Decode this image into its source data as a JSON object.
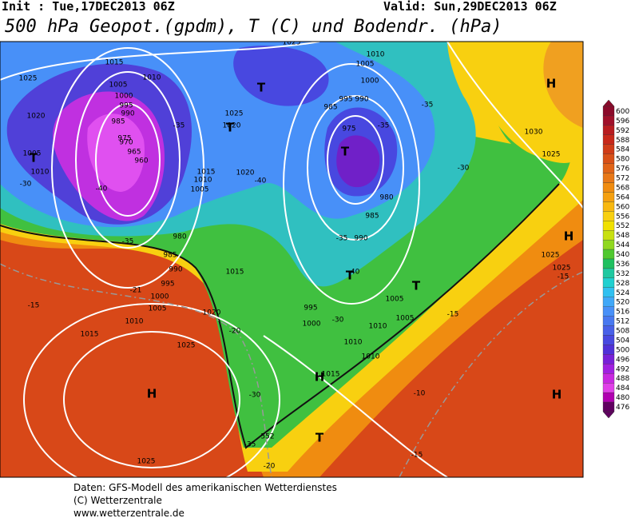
{
  "header": {
    "init": "Init : Tue,17DEC2013 06Z",
    "valid": "Valid: Sun,29DEC2013 06Z",
    "title": "500 hPa Geopot.(gpdm), T (C) und Bodendr. (hPa)"
  },
  "colorbar": {
    "labels": [
      600,
      596,
      592,
      588,
      584,
      580,
      576,
      572,
      568,
      564,
      560,
      556,
      552,
      548,
      544,
      540,
      536,
      532,
      528,
      524,
      520,
      516,
      512,
      508,
      504,
      500,
      496,
      492,
      488,
      484,
      480,
      476
    ],
    "colors": [
      "#8b0a2a",
      "#a0102a",
      "#b81c20",
      "#c8281a",
      "#d03c18",
      "#d85018",
      "#e06418",
      "#e87818",
      "#f08c10",
      "#f5a010",
      "#f8b810",
      "#f8d010",
      "#f0e000",
      "#c8e010",
      "#90d820",
      "#50c830",
      "#20c060",
      "#20c8a0",
      "#20d0d0",
      "#30c0f0",
      "#40a8f8",
      "#4890f8",
      "#4878f0",
      "#4860e8",
      "#4848e0",
      "#5030d8",
      "#7820d8",
      "#a020e0",
      "#c828e0",
      "#e040e8",
      "#b000b0",
      "#600060"
    ]
  },
  "map": {
    "labels": [
      "H",
      "T",
      "T",
      "T",
      "T",
      "T",
      "T",
      "H",
      "H",
      "H",
      "H",
      "T",
      "1015",
      "1010",
      "1005",
      "1000",
      "995",
      "990",
      "985",
      "975",
      "970",
      "965",
      "960",
      "1025",
      "1020",
      "1010",
      "1005",
      "-30",
      "-40",
      "-35",
      "-21",
      "-15",
      "985",
      "980",
      "990",
      "995",
      "1000",
      "1005",
      "1010",
      "1015",
      "1025",
      "1020",
      "1015",
      "-20",
      "-30",
      "-35",
      "-20",
      "1025",
      "552",
      "1015",
      "1010",
      "1005",
      "-40",
      "1020",
      "1025",
      "1020",
      "1025",
      "-35",
      "1010",
      "1005",
      "1000",
      "995",
      "990",
      "985",
      "975",
      "980",
      "985",
      "990",
      "-35",
      "-40",
      "995",
      "1000",
      "-30",
      "1005",
      "1005",
      "1010",
      "1010",
      "1010",
      "1015",
      "-35",
      "-35",
      "-30",
      "1030",
      "1025",
      "1025",
      "1025",
      "-15",
      "-15",
      "-10",
      "-15"
    ]
  },
  "footer": {
    "source": "Daten: GFS-Modell des amerikanischen Wetterdienstes",
    "copyright": "(C) Wetterzentrale",
    "url": "www.wetterzentrale.de"
  }
}
